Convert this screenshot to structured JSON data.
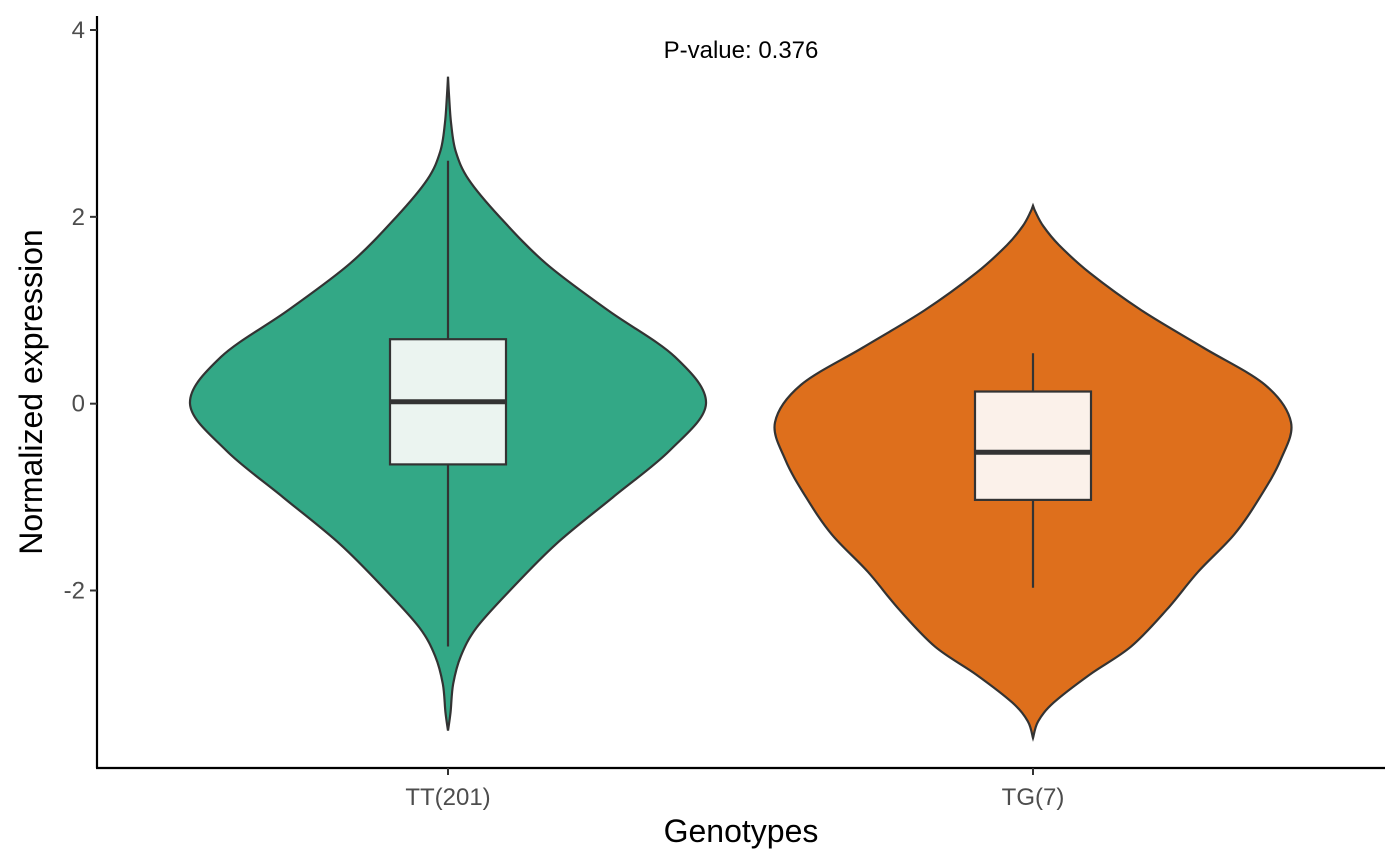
{
  "chart_data": {
    "type": "violin",
    "xlabel": "Genotypes",
    "ylabel": "Normalized expression",
    "ylim": [
      -3.9,
      4.15
    ],
    "yticks": [
      -2,
      0,
      2,
      4
    ],
    "ytick_labels": [
      "-2",
      "0",
      "2",
      "4"
    ],
    "grid": false,
    "legend": "none",
    "annotation": "P-value: 0.376",
    "groups": [
      {
        "label": "TT(201)",
        "color": "#33a886",
        "box_fill": "#ebf4f0",
        "min": -3.5,
        "max": 3.5,
        "whisker_low": -2.6,
        "whisker_high": 2.6,
        "q1": -0.65,
        "median": 0.02,
        "q3": 0.69,
        "density": [
          [
            -3.5,
            0.0
          ],
          [
            -3.3,
            0.01
          ],
          [
            -3.0,
            0.02
          ],
          [
            -2.7,
            0.05
          ],
          [
            -2.4,
            0.11
          ],
          [
            -2.0,
            0.24
          ],
          [
            -1.5,
            0.42
          ],
          [
            -1.0,
            0.64
          ],
          [
            -0.5,
            0.86
          ],
          [
            0.0,
            1.0
          ],
          [
            0.5,
            0.88
          ],
          [
            1.0,
            0.62
          ],
          [
            1.5,
            0.38
          ],
          [
            2.0,
            0.2
          ],
          [
            2.4,
            0.08
          ],
          [
            2.7,
            0.03
          ],
          [
            3.0,
            0.012
          ],
          [
            3.3,
            0.004
          ],
          [
            3.5,
            0.0
          ]
        ]
      },
      {
        "label": "TG(7)",
        "color": "#de6f1c",
        "box_fill": "#fbf1ea",
        "min": -3.58,
        "max": 2.12,
        "whisker_low": -1.97,
        "whisker_high": 0.54,
        "q1": -1.03,
        "median": -0.52,
        "q3": 0.13,
        "density": [
          [
            -3.58,
            0.0
          ],
          [
            -3.4,
            0.02
          ],
          [
            -3.2,
            0.08
          ],
          [
            -2.9,
            0.22
          ],
          [
            -2.6,
            0.38
          ],
          [
            -2.2,
            0.52
          ],
          [
            -1.8,
            0.64
          ],
          [
            -1.4,
            0.78
          ],
          [
            -1.0,
            0.88
          ],
          [
            -0.6,
            0.96
          ],
          [
            -0.2,
            1.0
          ],
          [
            0.2,
            0.9
          ],
          [
            0.6,
            0.66
          ],
          [
            1.0,
            0.42
          ],
          [
            1.4,
            0.22
          ],
          [
            1.7,
            0.1
          ],
          [
            1.9,
            0.04
          ],
          [
            2.05,
            0.01
          ],
          [
            2.12,
            0.0
          ]
        ]
      }
    ]
  }
}
